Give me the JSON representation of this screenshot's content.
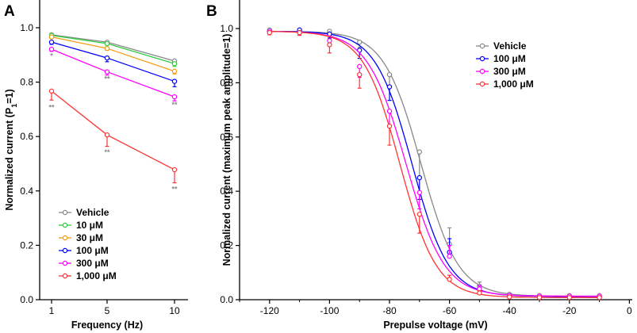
{
  "chart_data": [
    {
      "panel": "A",
      "type": "line",
      "xlabel": "Frequency (Hz)",
      "ylabel_main": "Normalized current (P",
      "ylabel_sub": "1",
      "ylabel_tail": "=1)",
      "x": [
        1,
        5,
        10
      ],
      "x_ticks": [
        "1",
        "5",
        "10"
      ],
      "ylim": [
        0.0,
        1.0
      ],
      "y_ticks": [
        "0.0",
        "0.2",
        "0.4",
        "0.6",
        "0.8",
        "1.0"
      ],
      "legend_position": "bottom-left",
      "series": [
        {
          "name": "Vehicle",
          "color": "#888888",
          "values": [
            0.974,
            0.947,
            0.878
          ],
          "errors": [
            0.006,
            0.006,
            0.015
          ]
        },
        {
          "name": "10 μM",
          "color": "#2ecc40",
          "values": [
            0.972,
            0.942,
            0.868
          ],
          "errors": [
            0.006,
            0.006,
            0.01
          ]
        },
        {
          "name": "30 μM",
          "color": "#f39c12",
          "values": [
            0.966,
            0.924,
            0.84
          ],
          "errors": [
            0.006,
            0.007,
            0.01
          ]
        },
        {
          "name": "100 μM",
          "color": "#0000ff",
          "values": [
            0.947,
            0.889,
            0.803
          ],
          "errors": [
            0.008,
            0.014,
            0.02
          ]
        },
        {
          "name": "300 μM",
          "color": "#ff00ff",
          "values": [
            0.921,
            0.838,
            0.746
          ],
          "errors": [
            0.008,
            0.012,
            0.015
          ]
        },
        {
          "name": "1,000 μM",
          "color": "#ff3333",
          "values": [
            0.767,
            0.606,
            0.478
          ],
          "errors": [
            0.033,
            0.042,
            0.048
          ]
        }
      ],
      "annotations": [
        {
          "text": "*",
          "x": 1,
          "y": 0.9
        },
        {
          "text": "**",
          "x": 1,
          "y": 0.71
        },
        {
          "text": "**",
          "x": 5,
          "y": 0.815
        },
        {
          "text": "**",
          "x": 5,
          "y": 0.545
        },
        {
          "text": "**",
          "x": 10,
          "y": 0.72
        },
        {
          "text": "**",
          "x": 10,
          "y": 0.41
        }
      ]
    },
    {
      "panel": "B",
      "type": "scatter",
      "xlabel": "Prepulse voltage (mV)",
      "ylabel": "Normalized current (maximum peak amplitude=1)",
      "xlim": [
        -130,
        0
      ],
      "x_ticks": [
        "-120",
        "-100",
        "-80",
        "-60",
        "-40",
        "-20",
        "0"
      ],
      "ylim": [
        0.0,
        1.1
      ],
      "y_ticks": [
        "0.0",
        "0.2",
        "0.4",
        "0.6",
        "0.8",
        "1.0"
      ],
      "legend_position": "top-right",
      "x": [
        -120,
        -110,
        -100,
        -90,
        -80,
        -70,
        -60,
        -50,
        -40,
        -30,
        -20,
        -10
      ],
      "series": [
        {
          "name": "Vehicle",
          "color": "#888888",
          "values": [
            0.995,
            0.99,
            0.99,
            0.95,
            0.83,
            0.545,
            0.205,
            0.05,
            0.02,
            0.015,
            0.015,
            0.015
          ],
          "errors": [
            0.005,
            0.01,
            0.01,
            0.02,
            0.05,
            0.1,
            0.06,
            0.015,
            0.005,
            0.004,
            0.004,
            0.004
          ],
          "fit": {
            "top": 0.99,
            "bottom": 0.013,
            "v50": -69.5,
            "k": 6.2
          }
        },
        {
          "name": "100 μM",
          "color": "#0000ff",
          "values": [
            0.99,
            0.995,
            0.98,
            0.92,
            0.785,
            0.45,
            0.175,
            0.04,
            0.015,
            0.012,
            0.012,
            0.012
          ],
          "errors": [
            0.006,
            0.008,
            0.015,
            0.03,
            0.05,
            0.08,
            0.05,
            0.012,
            0.005,
            0.004,
            0.004,
            0.004
          ],
          "fit": {
            "top": 0.99,
            "bottom": 0.012,
            "v50": -72.5,
            "k": 6.1
          }
        },
        {
          "name": "300 μM",
          "color": "#ff00ff",
          "values": [
            0.99,
            0.985,
            0.955,
            0.86,
            0.695,
            0.395,
            0.16,
            0.04,
            0.015,
            0.013,
            0.013,
            0.013
          ],
          "errors": [
            0.006,
            0.01,
            0.02,
            0.04,
            0.06,
            0.06,
            0.04,
            0.012,
            0.005,
            0.004,
            0.004,
            0.004
          ],
          "fit": {
            "top": 0.99,
            "bottom": 0.013,
            "v50": -74.5,
            "k": 6.4
          }
        },
        {
          "name": "1,000 μM",
          "color": "#ff3333",
          "values": [
            0.985,
            0.985,
            0.94,
            0.83,
            0.64,
            0.315,
            0.075,
            0.025,
            0.01,
            0.008,
            0.008,
            0.008
          ],
          "errors": [
            0.008,
            0.01,
            0.03,
            0.05,
            0.07,
            0.07,
            0.015,
            0.008,
            0.004,
            0.003,
            0.003,
            0.003
          ],
          "fit": {
            "top": 0.99,
            "bottom": 0.008,
            "v50": -76.5,
            "k": 6.1
          }
        }
      ]
    }
  ]
}
